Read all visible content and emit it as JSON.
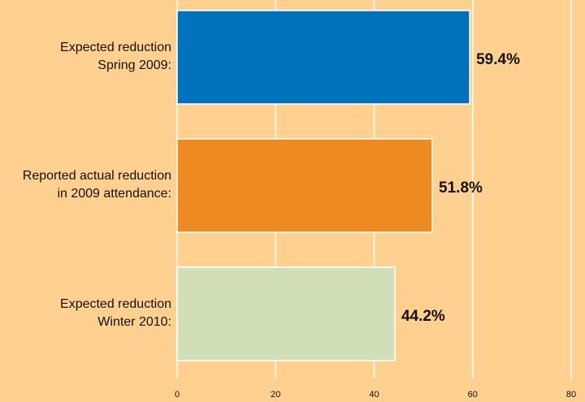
{
  "chart_data": {
    "type": "hbar",
    "categories": [
      [
        "Expected reduction",
        "Spring 2009:"
      ],
      [
        "Reported actual reduction",
        "in 2009 attendance:"
      ],
      [
        "Expected reduction",
        "Winter 2010:"
      ]
    ],
    "values": [
      59.4,
      51.8,
      44.2
    ],
    "value_labels": [
      "59.4%",
      "51.8%",
      "44.2%"
    ],
    "colors": [
      "#0072bc",
      "#ee8a22",
      "#d1dfb8"
    ],
    "xlim": [
      0,
      80
    ],
    "xticks": [
      0,
      20,
      40,
      60,
      80
    ],
    "grid": true
  }
}
